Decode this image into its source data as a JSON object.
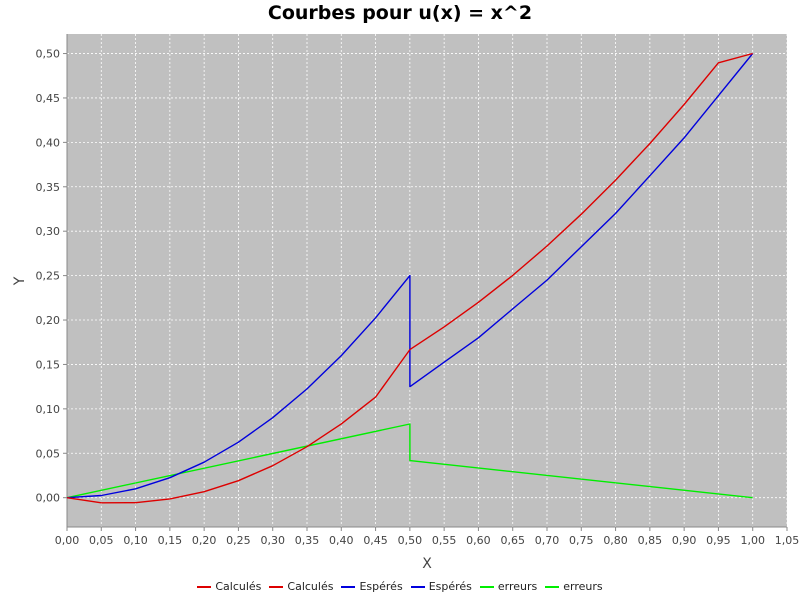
{
  "chart_data": {
    "type": "line",
    "title": "Courbes pour u(x) = x^2",
    "xlabel": "X",
    "ylabel": "Y",
    "xlim": [
      0.0,
      1.05
    ],
    "ylim": [
      -0.033,
      0.522
    ],
    "grid": true,
    "plot_background": "#c0c0c0",
    "legend_position": "bottom-center",
    "x_ticks": [
      "0,00",
      "0,05",
      "0,10",
      "0,15",
      "0,20",
      "0,25",
      "0,30",
      "0,35",
      "0,40",
      "0,45",
      "0,50",
      "0,55",
      "0,60",
      "0,65",
      "0,70",
      "0,75",
      "0,80",
      "0,85",
      "0,90",
      "0,95",
      "1,00",
      "1,05"
    ],
    "y_ticks": [
      "0,00",
      "0,05",
      "0,10",
      "0,15",
      "0,20",
      "0,25",
      "0,30",
      "0,35",
      "0,40",
      "0,45",
      "0,50"
    ],
    "series": [
      {
        "name": "Calculés",
        "color": "#dd0000",
        "x": [
          0,
          0.05,
          0.1,
          0.15,
          0.2,
          0.25,
          0.3,
          0.35,
          0.4,
          0.45,
          0.5,
          0.55,
          0.6,
          0.65,
          0.7,
          0.75,
          0.8,
          0.85,
          0.9,
          0.95,
          1.0
        ],
        "y": [
          0,
          -0.0058,
          -0.0056,
          -0.0014,
          0.0067,
          0.0191,
          0.036,
          0.0574,
          0.0831,
          0.1132,
          0.1667,
          0.1923,
          0.22,
          0.2502,
          0.2833,
          0.3191,
          0.3575,
          0.3987,
          0.4426,
          0.4896,
          0.5
        ]
      },
      {
        "name": "Calculés",
        "color": "#dd0000",
        "x": [],
        "y": []
      },
      {
        "name": "Espérés",
        "color": "#0000dd",
        "x": [
          0,
          0.05,
          0.1,
          0.15,
          0.2,
          0.25,
          0.3,
          0.35,
          0.4,
          0.45,
          0.5,
          0.5,
          0.55,
          0.6,
          0.65,
          0.7,
          0.75,
          0.8,
          0.85,
          0.9,
          0.95,
          1.0
        ],
        "y": [
          0,
          0.0025,
          0.01,
          0.0225,
          0.04,
          0.0625,
          0.09,
          0.1225,
          0.16,
          0.2025,
          0.25,
          0.125,
          0.1525,
          0.18,
          0.2125,
          0.245,
          0.2825,
          0.32,
          0.3625,
          0.405,
          0.4525,
          0.5
        ]
      },
      {
        "name": "Espérés",
        "color": "#0000dd",
        "x": [],
        "y": []
      },
      {
        "name": "erreurs",
        "color": "#00ee00",
        "x": [
          0,
          0.5,
          0.5,
          1.0
        ],
        "y": [
          0,
          0.083,
          0.0417,
          0
        ]
      },
      {
        "name": "erreurs",
        "color": "#00ee00",
        "x": [],
        "y": []
      }
    ]
  }
}
